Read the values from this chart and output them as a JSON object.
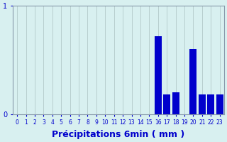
{
  "categories": [
    0,
    1,
    2,
    3,
    4,
    5,
    6,
    7,
    8,
    9,
    10,
    11,
    12,
    13,
    14,
    15,
    16,
    17,
    18,
    19,
    20,
    21,
    22,
    23
  ],
  "values": [
    0,
    0,
    0,
    0,
    0,
    0,
    0,
    0,
    0,
    0,
    0,
    0,
    0,
    0,
    0,
    0,
    0.72,
    0.18,
    0.2,
    0,
    0.6,
    0.18,
    0.18,
    0.18
  ],
  "bar_color": "#0000cc",
  "background_color": "#d8f0f0",
  "grid_color": "#b8cece",
  "axis_color": "#8899aa",
  "text_color": "#0000cc",
  "xlabel": "Précipitations 6min ( mm )",
  "ylim": [
    0,
    1.0
  ],
  "yticks": [
    0,
    1
  ],
  "label_fontsize": 9
}
